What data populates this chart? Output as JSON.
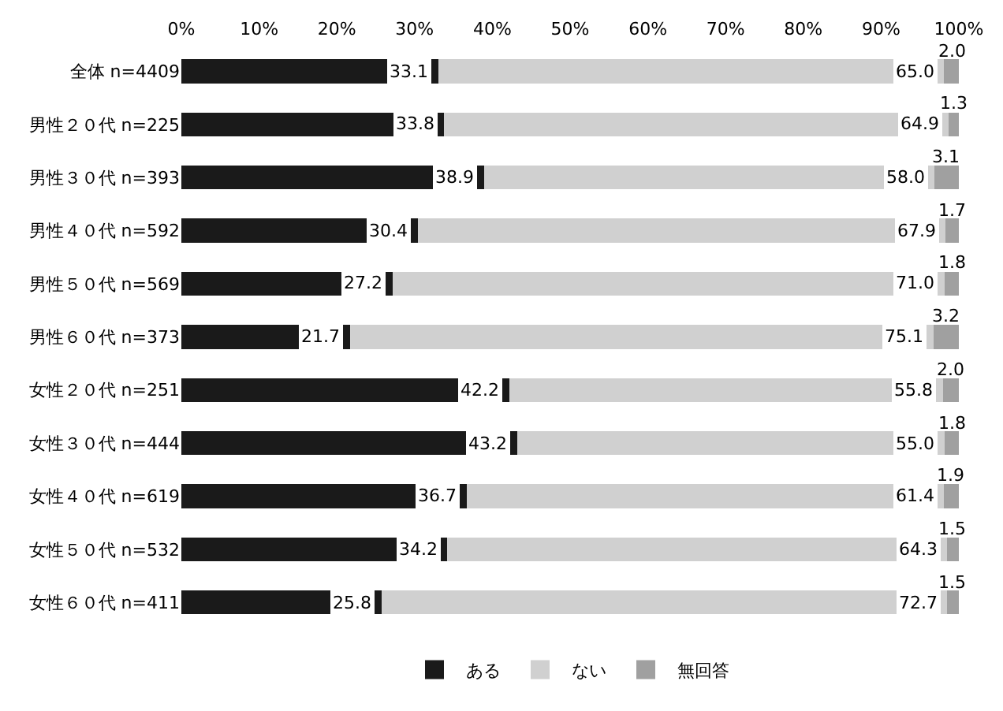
{
  "chart_data": {
    "type": "bar",
    "orientation": "horizontal",
    "stacked": true,
    "legend": "bottom",
    "grid": false,
    "categories": [
      "全体 n=4409",
      "男性２０代 n=225",
      "男性３０代 n=393",
      "男性４０代 n=592",
      "男性５０代 n=569",
      "男性６０代 n=373",
      "女性２０代 n=251",
      "女性３０代 n=444",
      "女性４０代 n=619",
      "女性５０代 n=532",
      "女性６０代 n=411"
    ],
    "series": [
      {
        "name": "ある",
        "color": "#1a1a1a",
        "values": [
          33.1,
          33.8,
          38.9,
          30.4,
          27.2,
          21.7,
          42.2,
          43.2,
          36.7,
          34.2,
          25.8
        ],
        "value_labels": [
          "33.1",
          "33.8",
          "38.9",
          "30.4",
          "27.2",
          "21.7",
          "42.2",
          "43.2",
          "36.7",
          "34.2",
          "25.8"
        ]
      },
      {
        "name": "ない",
        "color": "#d0d0d0",
        "values": [
          65.0,
          64.9,
          58.0,
          67.9,
          71.0,
          75.1,
          55.8,
          55.0,
          61.4,
          64.3,
          72.7
        ],
        "value_labels": [
          "65.0",
          "64.9",
          "58.0",
          "67.9",
          "71.0",
          "75.1",
          "55.8",
          "55.0",
          "61.4",
          "64.3",
          "72.7"
        ]
      },
      {
        "name": "無回答",
        "color": "#a0a0a0",
        "values": [
          2.0,
          1.3,
          3.1,
          1.7,
          1.8,
          3.2,
          2.0,
          1.8,
          1.9,
          1.5,
          1.5
        ],
        "value_labels": [
          "2.0",
          "1.3",
          "3.1",
          "1.7",
          "1.8",
          "3.2",
          "2.0",
          "1.8",
          "1.9",
          "1.5",
          "1.5"
        ]
      }
    ],
    "xlim": [
      0,
      100
    ],
    "xticks": [
      {
        "value": 0,
        "label": "0%"
      },
      {
        "value": 10,
        "label": "10%"
      },
      {
        "value": 20,
        "label": "20%"
      },
      {
        "value": 30,
        "label": "30%"
      },
      {
        "value": 40,
        "label": "40%"
      },
      {
        "value": 50,
        "label": "50%"
      },
      {
        "value": 60,
        "label": "60%"
      },
      {
        "value": 70,
        "label": "70%"
      },
      {
        "value": 80,
        "label": "80%"
      },
      {
        "value": 90,
        "label": "90%"
      },
      {
        "value": 100,
        "label": "100%"
      }
    ]
  }
}
